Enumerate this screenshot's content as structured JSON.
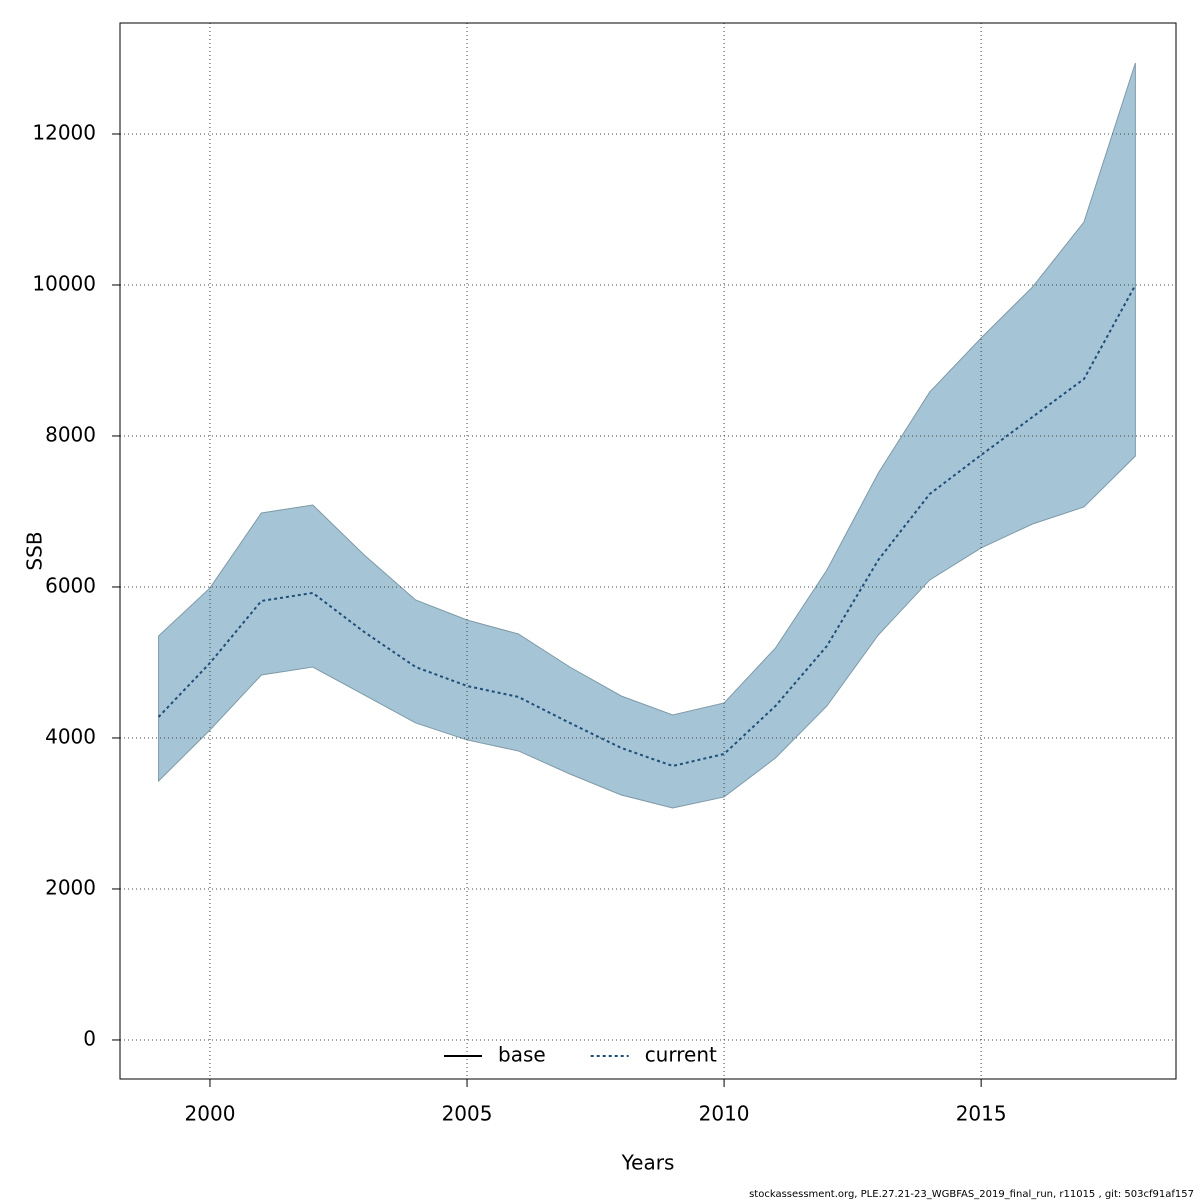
{
  "chart_data": {
    "type": "line",
    "xlabel": "Years",
    "ylabel": "SSB",
    "x": [
      1999,
      2000,
      2001,
      2002,
      2003,
      2004,
      2005,
      2006,
      2007,
      2008,
      2009,
      2010,
      2011,
      2012,
      2013,
      2014,
      2015,
      2016,
      2017,
      2018
    ],
    "series": [
      {
        "name": "current",
        "color": "#1f4e79",
        "style": "dotted",
        "values": [
          4278,
          4993,
          5815,
          5921,
          5404,
          4940,
          4689,
          4543,
          4199,
          3868,
          3629,
          3788,
          4424,
          5219,
          6358,
          7232,
          7748,
          8252,
          8755,
          10000
        ]
      }
    ],
    "band": {
      "color": "#a5c4d6",
      "upper": [
        5351,
        5987,
        6980,
        7086,
        6424,
        5828,
        5563,
        5377,
        4940,
        4556,
        4305,
        4464,
        5192,
        6225,
        7510,
        8583,
        9298,
        9974,
        10834,
        12940
      ],
      "lower": [
        3430,
        4106,
        4834,
        4940,
        4570,
        4199,
        3974,
        3828,
        3523,
        3245,
        3073,
        3219,
        3735,
        4424,
        5364,
        6093,
        6517,
        6834,
        7060,
        7735
      ]
    },
    "legend": [
      {
        "name": "base",
        "color": "#000000",
        "style": "solid"
      },
      {
        "name": "current",
        "color": "#1f4e79",
        "style": "dotted"
      }
    ],
    "legend_position": "bottom",
    "xlim": [
      1998.25,
      2018.79
    ],
    "xticks": [
      2000,
      2005,
      2010,
      2015
    ],
    "ylim": [
      -517,
      13470
    ],
    "yticks": [
      0,
      2000,
      4000,
      6000,
      8000,
      10000,
      12000
    ],
    "grid": true,
    "footer": "stockassessment.org, PLE.27.21-23_WGBFAS_2019_final_run, r11015 , git: 503cf91af157"
  }
}
